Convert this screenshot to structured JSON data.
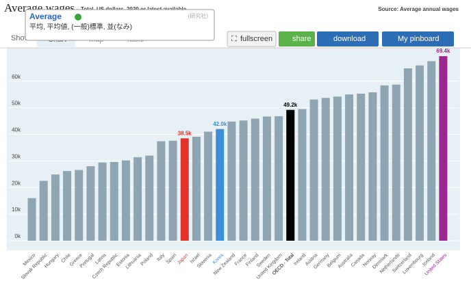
{
  "header": {
    "title": "Average wages",
    "subtitle": "Total, US dollars, 2020 or latest available",
    "source": "Source: Average annual wages"
  },
  "tabs": [
    "Show",
    "Chart",
    "Map",
    "Table"
  ],
  "buttons": [
    "fullscreen",
    "share",
    "download",
    "My pinboard"
  ],
  "popup": {
    "word": "Average",
    "dictionary": "(研究社)",
    "definition": "平均, 平均値, (一般)標準, 並(なみ)"
  },
  "chart_data": {
    "type": "bar",
    "categories": [
      "Mexico",
      "Slovak Republic",
      "Hungary",
      "Chile",
      "Greece",
      "Portugal",
      "Latvia",
      "Czech Republic",
      "Estonia",
      "Lithuania",
      "Poland",
      "Italy",
      "Spain",
      "Japan",
      "Israel",
      "Slovenia",
      "Korea",
      "New Zealand",
      "France",
      "Finland",
      "Sweden",
      "United Kingdom",
      "OECD - Total",
      "Ireland",
      "Austria",
      "Germany",
      "Belgium",
      "Australia",
      "Canada",
      "Norway",
      "Denmark",
      "Netherlands",
      "Switzerland",
      "Luxembourg",
      "Iceland",
      "United States"
    ],
    "values": [
      16.0,
      22.5,
      24.9,
      26.2,
      26.6,
      28.0,
      29.4,
      29.6,
      30.2,
      31.4,
      32.0,
      37.4,
      37.6,
      38.5,
      39.1,
      41.0,
      42.0,
      44.8,
      45.2,
      45.9,
      46.7,
      46.8,
      49.2,
      49.5,
      53.1,
      53.7,
      54.2,
      55.0,
      55.3,
      55.8,
      58.4,
      58.7,
      64.8,
      65.9,
      67.5,
      69.4
    ],
    "value_labels": [
      null,
      null,
      null,
      null,
      null,
      null,
      null,
      null,
      null,
      null,
      null,
      null,
      null,
      "38.5k",
      null,
      null,
      "42.0k",
      null,
      null,
      null,
      null,
      null,
      "49.2k",
      null,
      null,
      null,
      null,
      null,
      null,
      null,
      null,
      null,
      null,
      null,
      null,
      "69.4k"
    ],
    "color": "#8fa5b2",
    "colors": [
      "#8fa5b2",
      "#8fa5b2",
      "#8fa5b2",
      "#8fa5b2",
      "#8fa5b2",
      "#8fa5b2",
      "#8fa5b2",
      "#8fa5b2",
      "#8fa5b2",
      "#8fa5b2",
      "#8fa5b2",
      "#8fa5b2",
      "#8fa5b2",
      "#e3322b",
      "#8fa5b2",
      "#8fa5b2",
      "#3d8ddb",
      "#8fa5b2",
      "#8fa5b2",
      "#8fa5b2",
      "#8fa5b2",
      "#8fa5b2",
      "#000000",
      "#8fa5b2",
      "#8fa5b2",
      "#8fa5b2",
      "#8fa5b2",
      "#8fa5b2",
      "#8fa5b2",
      "#8fa5b2",
      "#8fa5b2",
      "#8fa5b2",
      "#8fa5b2",
      "#8fa5b2",
      "#8fa5b2",
      "#9a2890"
    ],
    "ylim": [
      0,
      72
    ],
    "yticks": [
      {
        "value": 0,
        "label": "0k"
      },
      {
        "value": 10,
        "label": "10k"
      },
      {
        "value": 20,
        "label": "20k"
      },
      {
        "value": 30,
        "label": "30k"
      },
      {
        "value": 40,
        "label": "40k"
      },
      {
        "value": 50,
        "label": "50k"
      },
      {
        "value": 60,
        "label": "60k"
      }
    ],
    "grid": true
  }
}
